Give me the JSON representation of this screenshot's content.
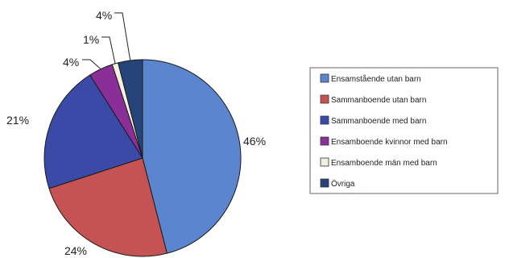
{
  "chart_data": {
    "type": "pie",
    "title": "",
    "legend_position": "right",
    "slices": [
      {
        "name": "Ensamstående utan barn",
        "value": 46,
        "label": "46%",
        "color": "#5b86cf"
      },
      {
        "name": "Sammanboende utan barn",
        "value": 24,
        "label": "24%",
        "color": "#c65353"
      },
      {
        "name": "Sammanboende med barn",
        "value": 21,
        "label": "21%",
        "color": "#3a4aa6"
      },
      {
        "name": "Ensamboende kvinnor med barn",
        "value": 4,
        "label": "4%",
        "color": "#8a2f98"
      },
      {
        "name": "Ensamboende män med barn",
        "value": 1,
        "label": "1%",
        "color": "#f2f0dc"
      },
      {
        "name": "Övriga",
        "value": 4,
        "label": "4%",
        "color": "#25457a"
      }
    ]
  }
}
